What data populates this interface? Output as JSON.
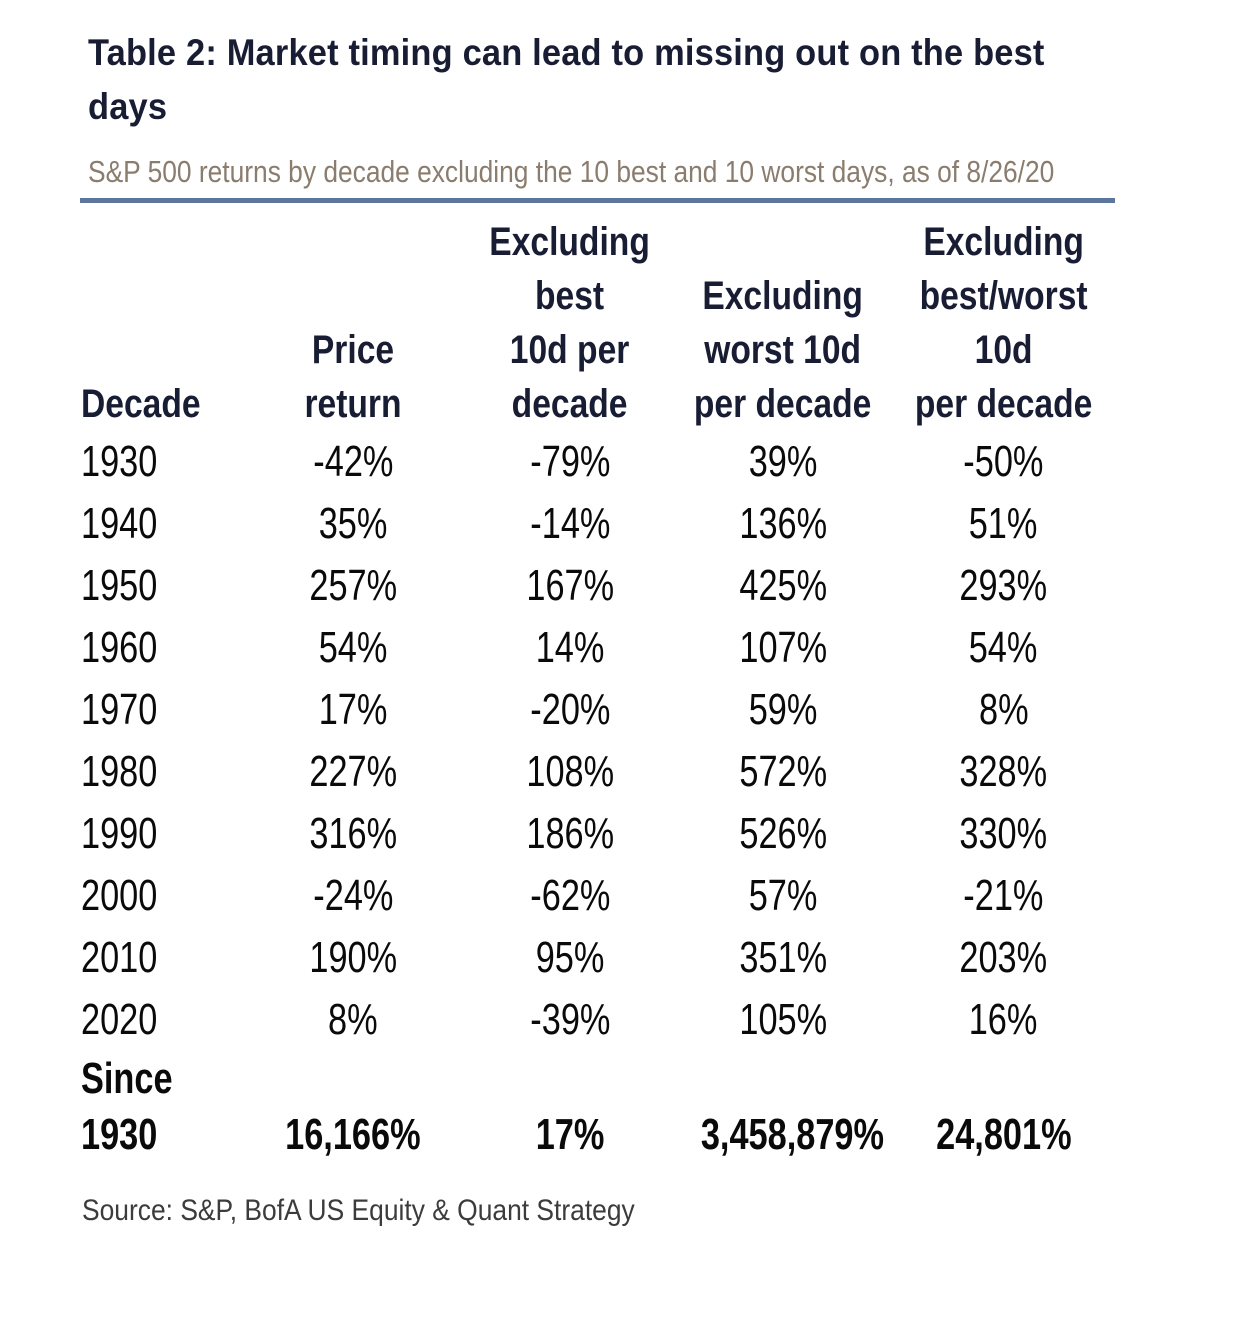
{
  "colors": {
    "heading_navy": "#181d33",
    "subtitle_taupe": "#8b7d6e",
    "rule_blue": "#5c769c",
    "body_black": "#0a0a0a",
    "source_gray": "#3c3c3c",
    "background": "#ffffff"
  },
  "chart_data": {
    "type": "table",
    "title": "Table 2: Market timing can lead to missing out on the best days",
    "subtitle": "S&P 500 returns by decade excluding the 10 best and 10 worst days, as of 8/26/20",
    "source": "Source: S&P, BofA US Equity & Quant Strategy",
    "columns": [
      {
        "key": "decade",
        "label": "Decade",
        "label_lines": "Decade",
        "align": "left"
      },
      {
        "key": "price_return",
        "label": "Price return",
        "label_lines": "Price return",
        "align": "center"
      },
      {
        "key": "excluding_best_10d",
        "label": "Excluding best 10d per decade",
        "label_lines": "Excluding\nbest\n10d per\ndecade",
        "align": "center"
      },
      {
        "key": "excluding_worst_10d",
        "label": "Excluding worst 10d per decade",
        "label_lines": "Excluding\nworst 10d\nper decade",
        "align": "center"
      },
      {
        "key": "excluding_best_worst_10d",
        "label": "Excluding best/worst 10d per decade",
        "label_lines": "Excluding\nbest/worst\n10d\nper decade",
        "align": "center"
      }
    ],
    "rows": [
      [
        "1930",
        "-42%",
        "-79%",
        "39%",
        "-50%"
      ],
      [
        "1940",
        "35%",
        "-14%",
        "136%",
        "51%"
      ],
      [
        "1950",
        "257%",
        "167%",
        "425%",
        "293%"
      ],
      [
        "1960",
        "54%",
        "14%",
        "107%",
        "54%"
      ],
      [
        "1970",
        "17%",
        "-20%",
        "59%",
        "8%"
      ],
      [
        "1980",
        "227%",
        "108%",
        "572%",
        "328%"
      ],
      [
        "1990",
        "316%",
        "186%",
        "526%",
        "330%"
      ],
      [
        "2000",
        "-24%",
        "-62%",
        "57%",
        "-21%"
      ],
      [
        "2010",
        "190%",
        "95%",
        "351%",
        "203%"
      ],
      [
        "2020",
        "8%",
        "-39%",
        "105%",
        "16%"
      ]
    ],
    "total_row": {
      "label": "Since 1930",
      "label_lines": "Since\n1930",
      "values": [
        "16,166%",
        "17%",
        "3,458,879%",
        "24,801%"
      ]
    }
  }
}
